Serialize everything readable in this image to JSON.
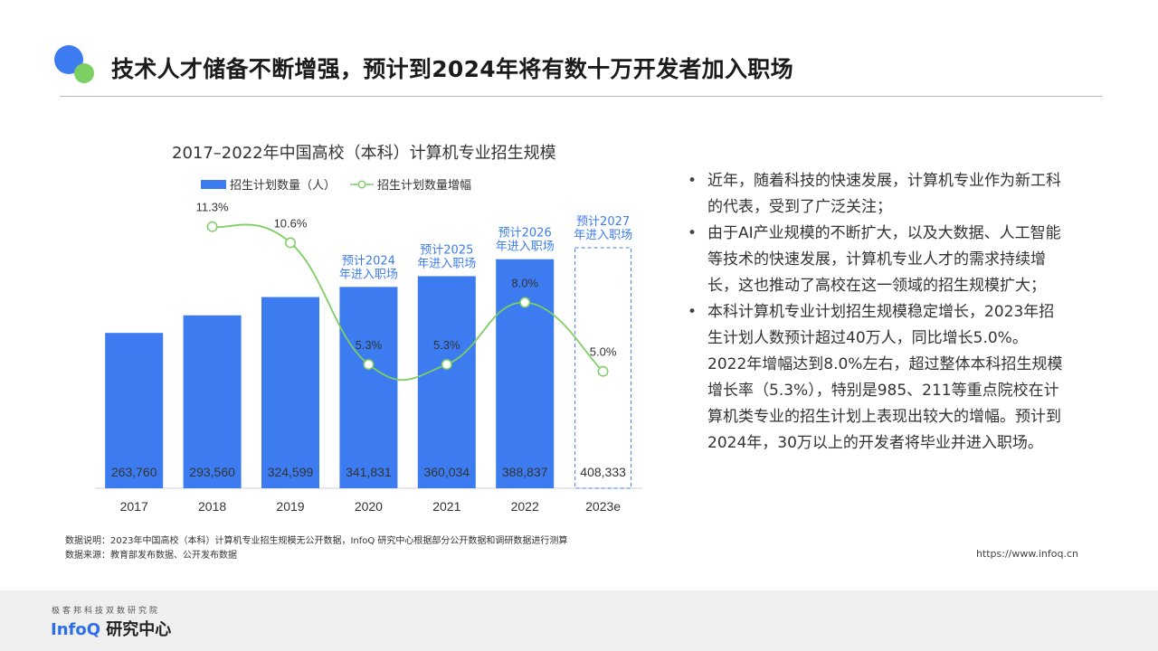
{
  "page": {
    "title": "技术人才储备不断增强，预计到2024年将有数十万开发者加入职场"
  },
  "chart_data": {
    "type": "bar",
    "title": "2017–2022年中国高校（本科）计算机专业招生规模",
    "categories": [
      "2017",
      "2018",
      "2019",
      "2020",
      "2021",
      "2022",
      "2023e"
    ],
    "series": [
      {
        "name": "招生计划数量（人）",
        "type": "bar",
        "color": "#3d7cf0",
        "values": [
          263760,
          293560,
          324599,
          341831,
          360034,
          388837,
          408333
        ],
        "value_labels": [
          "263,760",
          "293,560",
          "324,599",
          "341,831",
          "360,034",
          "388,837",
          "408,333"
        ],
        "last_is_estimate": true
      },
      {
        "name": "招生计划数量增幅",
        "type": "line",
        "color": "#7ccf62",
        "x": [
          "2018",
          "2019",
          "2020",
          "2021",
          "2022",
          "2023e"
        ],
        "values": [
          11.3,
          10.6,
          5.3,
          5.3,
          8.0,
          5.0
        ],
        "value_labels": [
          "11.3%",
          "10.6%",
          "5.3%",
          "5.3%",
          "8.0%",
          "5.0%"
        ]
      }
    ],
    "annotations": [
      {
        "category": "2020",
        "lines": [
          "预计2024",
          "年进入职场"
        ]
      },
      {
        "category": "2021",
        "lines": [
          "预计2025",
          "年进入职场"
        ]
      },
      {
        "category": "2022",
        "lines": [
          "预计2026",
          "年进入职场"
        ]
      },
      {
        "category": "2023e",
        "lines": [
          "预计2027",
          "年进入职场"
        ]
      }
    ],
    "legend": "top-left",
    "grid": false
  },
  "text": {
    "bullets": [
      "近年，随着科技的快速发展，计算机专业作为新工科的代表，受到了广泛关注；",
      "由于AI产业规模的不断扩大，以及大数据、人工智能等技术的快速发展，计算机专业人才的需求持续增长，这也推动了高校在这一领域的招生规模扩大；",
      "本科计算机专业计划招生规模稳定增长，2023年招生计划人数预计超过40万人，同比增长5.0%。2022年增幅达到8.0%左右，超过整体本科招生规模增长率（5.3%），特别是985、211等重点院校在计算机类专业的招生计划上表现出较大的增幅。预计到2024年，30万以上的开发者将毕业并进入职场。"
    ],
    "note_1": "数据说明：2023年中国高校（本科）计算机专业招生规模无公开数据，InfoQ 研究中心根据部分公开数据和调研数据进行测算",
    "note_2": "数据来源：教育部发布数据、公开发布数据",
    "url": "https://www.infoq.cn"
  },
  "footer": {
    "subtitle": "极客邦科技双数研究院",
    "brand_en": "InfoQ",
    "brand_cn": "研究中心"
  },
  "icons": [
    "logo-dots-icon"
  ],
  "colors": {
    "accent_blue": "#3d7cf0",
    "accent_green": "#7ccf62",
    "annotation_blue": "#3d7cf0"
  }
}
